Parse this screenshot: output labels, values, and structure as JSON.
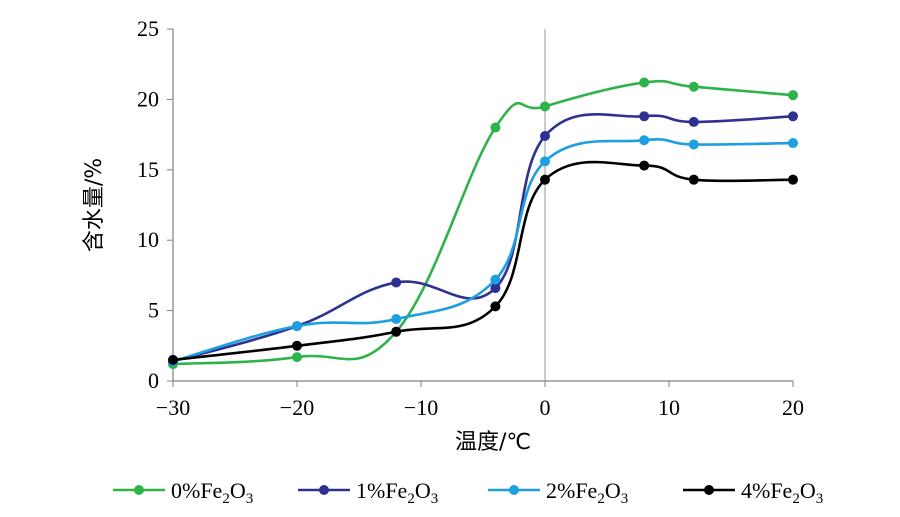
{
  "chart_data": {
    "type": "line",
    "xlabel": "温度/℃",
    "ylabel": "含水量/%",
    "xlim": [
      -30,
      20
    ],
    "ylim": [
      0,
      25
    ],
    "xticks": [
      -30,
      -20,
      -10,
      0,
      10,
      20
    ],
    "yticks": [
      0,
      5,
      10,
      15,
      20,
      25
    ],
    "xtick_labels": [
      "−30",
      "−20",
      "−10",
      "0",
      "10",
      "20"
    ],
    "ytick_labels": [
      "0",
      "5",
      "10",
      "15",
      "20",
      "25"
    ],
    "grid": false,
    "legend_position": "bottom",
    "series": [
      {
        "name": "0%Fe2O3",
        "label_prefix": "0%Fe",
        "label_sub1": "2",
        "label_mid": "O",
        "label_sub2": "3",
        "color": "#2db34a",
        "points": [
          [
            -30,
            1.2
          ],
          [
            -20,
            1.7
          ],
          [
            -12,
            3.5
          ],
          [
            -4,
            18.0
          ],
          [
            0,
            19.5
          ],
          [
            8,
            21.2
          ],
          [
            12,
            20.9
          ],
          [
            20,
            20.3
          ]
        ]
      },
      {
        "name": "1%Fe2O3",
        "label_prefix": "1%Fe",
        "label_sub1": "2",
        "label_mid": "O",
        "label_sub2": "3",
        "color": "#2e3192",
        "points": [
          [
            -30,
            1.4
          ],
          [
            -20,
            3.9
          ],
          [
            -12,
            7.0
          ],
          [
            -4,
            6.6
          ],
          [
            0,
            17.4
          ],
          [
            8,
            18.8
          ],
          [
            12,
            18.4
          ],
          [
            20,
            18.8
          ]
        ]
      },
      {
        "name": "2%Fe2O3",
        "label_prefix": "2%Fe",
        "label_sub1": "2",
        "label_mid": "O",
        "label_sub2": "3",
        "color": "#1e9fe0",
        "points": [
          [
            -30,
            1.4
          ],
          [
            -20,
            3.9
          ],
          [
            -12,
            4.4
          ],
          [
            -4,
            7.2
          ],
          [
            0,
            15.6
          ],
          [
            8,
            17.1
          ],
          [
            12,
            16.8
          ],
          [
            20,
            16.9
          ]
        ]
      },
      {
        "name": "4%Fe2O3",
        "label_prefix": "4%Fe",
        "label_sub1": "2",
        "label_mid": "O",
        "label_sub2": "3",
        "color": "#000000",
        "points": [
          [
            -30,
            1.5
          ],
          [
            -20,
            2.5
          ],
          [
            -12,
            3.5
          ],
          [
            -4,
            5.3
          ],
          [
            0,
            14.3
          ],
          [
            8,
            15.3
          ],
          [
            12,
            14.3
          ],
          [
            20,
            14.3
          ]
        ]
      }
    ]
  }
}
